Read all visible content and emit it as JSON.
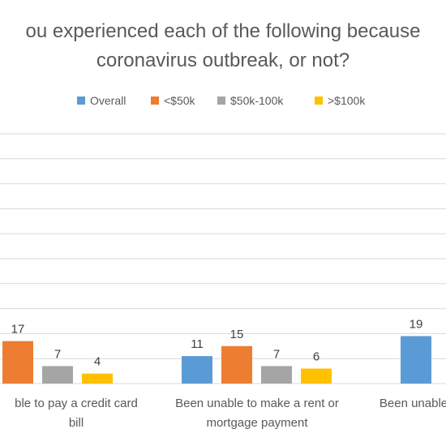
{
  "chart_data": {
    "type": "bar",
    "title_lines": [
      "ou experienced each of the following because",
      "coronavirus outbreak, or not?"
    ],
    "legend": [
      {
        "name": "Overall",
        "color": "#5B9BD5"
      },
      {
        "name": "<$50k",
        "color": "#ED7D31"
      },
      {
        "name": "$50k-100k",
        "color": "#A5A5A5"
      },
      {
        "name": ">$100k",
        "color": "#FFC000"
      }
    ],
    "categories": [
      {
        "line1": "ble to pay a credit card",
        "line2": "bill"
      },
      {
        "line1": "Been unable to make a rent or",
        "line2": "mortgage payment"
      },
      {
        "line1": "Been unable",
        "line2": ""
      }
    ],
    "series": [
      {
        "name": "Overall",
        "color": "#5B9BD5",
        "values": [
          null,
          11,
          19
        ]
      },
      {
        "name": "<$50k",
        "color": "#ED7D31",
        "values": [
          17,
          15,
          null
        ]
      },
      {
        "name": "$50k-100k",
        "color": "#A5A5A5",
        "values": [
          7,
          7,
          null
        ]
      },
      {
        "name": ">$100k",
        "color": "#FFC000",
        "values": [
          4,
          6,
          null
        ]
      }
    ],
    "ylim": [
      0,
      100
    ],
    "grid": true,
    "legend_position": "top"
  }
}
